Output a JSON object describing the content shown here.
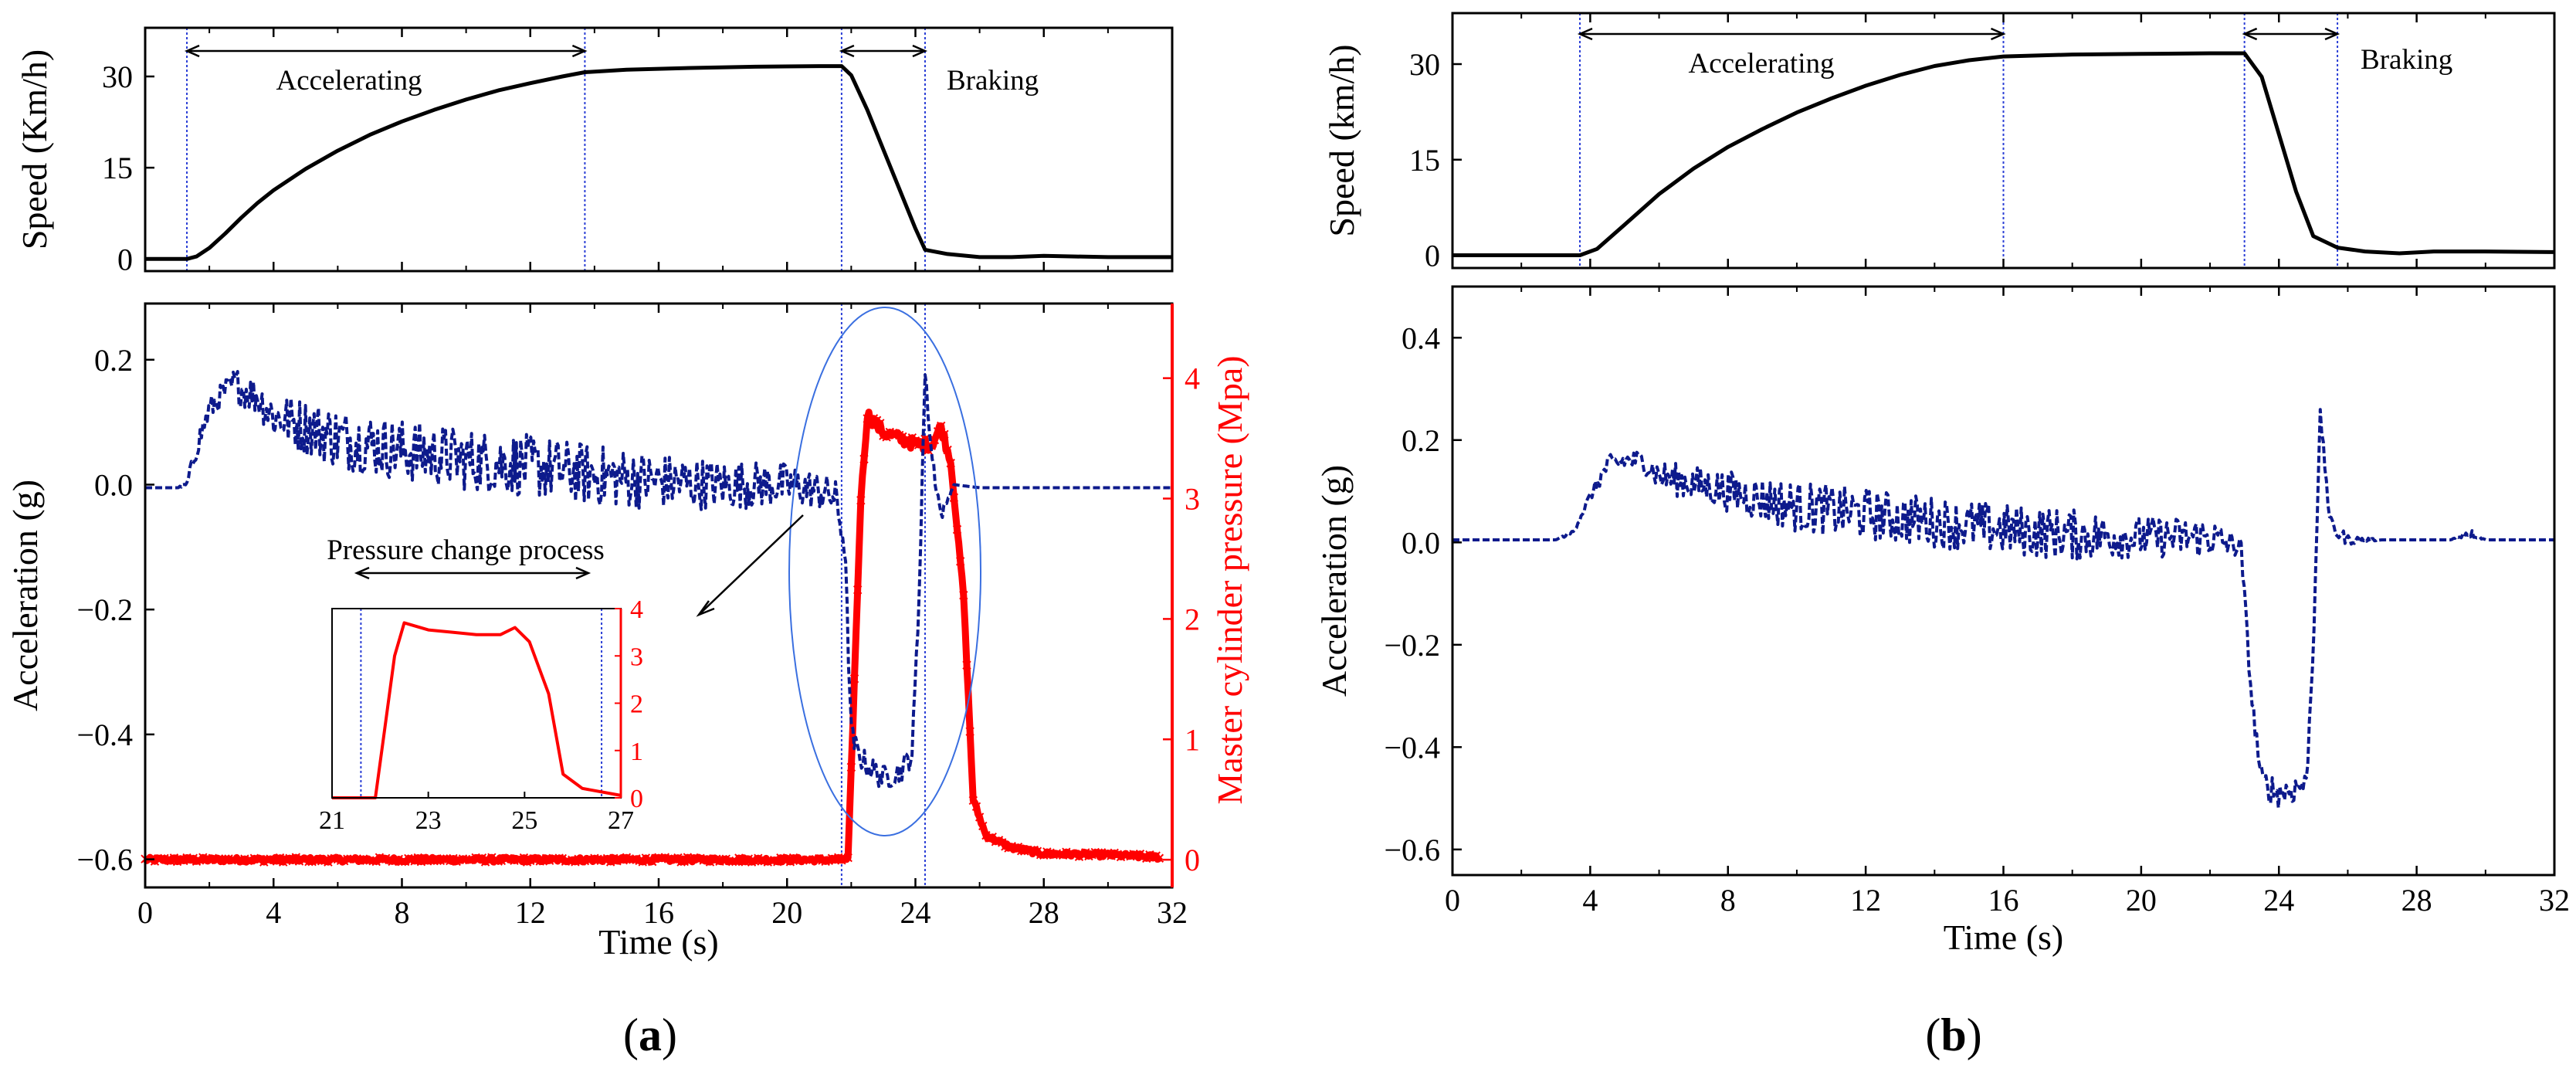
{
  "colors": {
    "speed": "#000000",
    "acceleration": "#0d1a8c",
    "pressure": "#ff0000",
    "marker_line": "#2b3fd6",
    "ellipse": "#3a6fe0",
    "frame": "#000000"
  },
  "panel_labels": {
    "a": "a",
    "b": "b"
  },
  "chart_data": [
    {
      "id": "a-speed",
      "type": "line",
      "title": "",
      "xlabel": "",
      "ylabel": "Speed (Km/h)",
      "xlim": [
        0,
        32
      ],
      "ylim": [
        -2,
        38
      ],
      "xticks": [
        0,
        4,
        8,
        12,
        16,
        20,
        24,
        28,
        32
      ],
      "xtick_labels_shown": false,
      "yticks": [
        0,
        15,
        30
      ],
      "ytick_labels": [
        "0",
        "15",
        "30"
      ],
      "series": [
        {
          "name": "Speed",
          "color": "#000000",
          "x": [
            0,
            1.3,
            1.6,
            2,
            2.5,
            3,
            3.5,
            4,
            5,
            6,
            7,
            8,
            9,
            10,
            11,
            12,
            13,
            13.7,
            15,
            17,
            19,
            21,
            21.7,
            22,
            22.5,
            23,
            23.5,
            24,
            24.3,
            25,
            26,
            27,
            28,
            29,
            30,
            32
          ],
          "y": [
            0,
            0,
            0.4,
            1.8,
            4.2,
            6.8,
            9.2,
            11.3,
            14.8,
            17.8,
            20.4,
            22.6,
            24.5,
            26.2,
            27.7,
            28.9,
            30,
            30.7,
            31.1,
            31.4,
            31.6,
            31.7,
            31.7,
            30.2,
            24.5,
            18,
            11.5,
            5,
            1.5,
            0.8,
            0.3,
            0.3,
            0.5,
            0.4,
            0.3,
            0.3
          ]
        }
      ],
      "annotations": [
        {
          "text": "Accelerating",
          "from": 1.3,
          "to": 13.7
        },
        {
          "text": "Braking",
          "from": 21.7,
          "to": 24.3
        }
      ],
      "markers": [
        1.3,
        13.7,
        21.7,
        24.3
      ]
    },
    {
      "id": "a-accel",
      "type": "line",
      "title": "",
      "xlabel": "Time (s)",
      "ylabel": "Acceleration (g)",
      "y2label": "Master cylinder pressure (Mpa)",
      "xlim": [
        0,
        32
      ],
      "ylim": [
        -0.645,
        0.29
      ],
      "y2lim": [
        -0.23,
        4.62
      ],
      "xticks": [
        0,
        4,
        8,
        12,
        16,
        20,
        24,
        28,
        32
      ],
      "xtick_labels": [
        "0",
        "4",
        "8",
        "12",
        "16",
        "20",
        "24",
        "28",
        "32"
      ],
      "yticks": [
        -0.6,
        -0.4,
        -0.2,
        0,
        0.2
      ],
      "ytick_labels": [
        "−0.6",
        "−0.4",
        "−0.2",
        "0.0",
        "0.2"
      ],
      "y2ticks": [
        0,
        1,
        2,
        3,
        4
      ],
      "y2tick_labels": [
        "0",
        "1",
        "2",
        "3",
        "4"
      ],
      "series": [
        {
          "name": "Acceleration",
          "axis": "left",
          "color": "#0d1a8c",
          "style": "dashed",
          "x": [
            0,
            1,
            1.3,
            1.6,
            2,
            2.5,
            2.8,
            3.5,
            4,
            6,
            8,
            10,
            12,
            14,
            16,
            18,
            20,
            21,
            21.5,
            21.8,
            22,
            22.2,
            22.5,
            23,
            23.5,
            23.9,
            24.1,
            24.3,
            24.5,
            24.8,
            25.2,
            26,
            28,
            30,
            32
          ],
          "y": [
            -0.005,
            -0.005,
            0.0,
            0.06,
            0.12,
            0.15,
            0.16,
            0.14,
            0.11,
            0.075,
            0.055,
            0.04,
            0.03,
            0.015,
            0.005,
            0.0,
            0.0,
            -0.01,
            -0.02,
            -0.1,
            -0.4,
            -0.43,
            -0.45,
            -0.47,
            -0.46,
            -0.43,
            -0.2,
            0.18,
            0.05,
            -0.05,
            0.0,
            -0.005,
            -0.005,
            -0.005,
            -0.005
          ],
          "noise_amplitude": [
            0,
            0,
            0.005,
            0.02,
            0.02,
            0.02,
            0.03,
            0.03,
            0.04,
            0.05,
            0.05,
            0.05,
            0.05,
            0.05,
            0.045,
            0.04,
            0.035,
            0.03,
            0.03,
            0.02,
            0.02,
            0.02,
            0.02,
            0.02,
            0.02,
            0.02,
            0.02,
            0.01,
            0.02,
            0.01,
            0,
            0,
            0,
            0,
            0
          ]
        },
        {
          "name": "Master cylinder pressure",
          "axis": "right",
          "color": "#ff0000",
          "style": "markers",
          "x": [
            0,
            21.5,
            21.9,
            22.1,
            22.3,
            22.5,
            23,
            23.5,
            24,
            24.5,
            24.8,
            25.1,
            25.5,
            25.8,
            26.2,
            27,
            28,
            30,
            31.7
          ],
          "y": [
            0,
            0,
            0,
            1.5,
            3,
            3.7,
            3.55,
            3.5,
            3.45,
            3.45,
            3.6,
            3.3,
            2.2,
            0.5,
            0.2,
            0.1,
            0.05,
            0.04,
            0.02
          ]
        }
      ],
      "annotations": [
        {
          "text": "Pressure change process"
        }
      ],
      "markers": [
        21.7,
        24.3
      ]
    },
    {
      "id": "a-inset",
      "type": "line",
      "title": "",
      "xlim": [
        21,
        27
      ],
      "ylim": [
        0,
        4
      ],
      "xticks": [
        21,
        23,
        25,
        27
      ],
      "xtick_labels": [
        "21",
        "23",
        "25",
        "27"
      ],
      "y2ticks": [
        0,
        1,
        2,
        3,
        4
      ],
      "y2tick_labels": [
        "0",
        "1",
        "2",
        "3",
        "4"
      ],
      "series": [
        {
          "name": "Master cylinder pressure",
          "color": "#ff0000",
          "x": [
            21,
            21.9,
            22.1,
            22.3,
            22.5,
            23,
            23.5,
            24,
            24.5,
            24.8,
            25.1,
            25.5,
            25.8,
            26.2,
            27
          ],
          "y": [
            0,
            0,
            1.5,
            3,
            3.7,
            3.55,
            3.5,
            3.45,
            3.45,
            3.6,
            3.3,
            2.2,
            0.5,
            0.2,
            0.05
          ]
        }
      ],
      "markers": [
        21.6,
        26.6
      ]
    },
    {
      "id": "b-speed",
      "type": "line",
      "title": "",
      "xlabel": "",
      "ylabel": "Speed (km/h)",
      "xlim": [
        0,
        32
      ],
      "ylim": [
        -2,
        38
      ],
      "xticks": [
        0,
        4,
        8,
        12,
        16,
        20,
        24,
        28,
        32
      ],
      "xtick_labels_shown": false,
      "yticks": [
        0,
        15,
        30
      ],
      "ytick_labels": [
        "0",
        "15",
        "30"
      ],
      "series": [
        {
          "name": "Speed",
          "color": "#000000",
          "x": [
            0,
            3.7,
            4.2,
            5,
            6,
            7,
            8,
            9,
            10,
            11,
            12,
            13,
            14,
            15,
            16,
            18,
            20,
            22,
            23,
            23.5,
            24,
            24.5,
            25,
            25.7,
            26.5,
            27.5,
            28.5,
            30,
            32
          ],
          "y": [
            0,
            0,
            1,
            4.8,
            9.6,
            13.6,
            17,
            19.8,
            22.4,
            24.6,
            26.6,
            28.3,
            29.7,
            30.6,
            31.2,
            31.5,
            31.6,
            31.7,
            31.7,
            28,
            19,
            10,
            3,
            1.2,
            0.6,
            0.3,
            0.6,
            0.6,
            0.5
          ]
        }
      ],
      "annotations": [
        {
          "text": "Accelerating",
          "from": 3.7,
          "to": 16
        },
        {
          "text": "Braking",
          "from": 23,
          "to": 25.7
        }
      ],
      "markers": [
        3.7,
        16,
        23,
        25.7
      ]
    },
    {
      "id": "b-accel",
      "type": "line",
      "title": "",
      "xlabel": "Time (s)",
      "ylabel": "Acceleration (g)",
      "xlim": [
        0,
        32
      ],
      "ylim": [
        -0.65,
        0.5
      ],
      "xticks": [
        0,
        4,
        8,
        12,
        16,
        20,
        24,
        28,
        32
      ],
      "xtick_labels": [
        "0",
        "4",
        "8",
        "12",
        "16",
        "20",
        "24",
        "28",
        "32"
      ],
      "yticks": [
        -0.6,
        -0.4,
        -0.2,
        0,
        0.2,
        0.4
      ],
      "ytick_labels": [
        "−0.6",
        "−0.4",
        "−0.2",
        "0.0",
        "0.2",
        "0.4"
      ],
      "series": [
        {
          "name": "Acceleration",
          "color": "#0d1a8c",
          "style": "dashed",
          "x": [
            0,
            3,
            3.5,
            4,
            4.5,
            5,
            5.5,
            6,
            8,
            10,
            12,
            14,
            16,
            18,
            20,
            22,
            22.9,
            23.2,
            23.5,
            24,
            24.5,
            24.8,
            25,
            25.2,
            25.5,
            26,
            27,
            28,
            29,
            29.5,
            30,
            32
          ],
          "y": [
            0.005,
            0.005,
            0.02,
            0.09,
            0.15,
            0.16,
            0.16,
            0.13,
            0.1,
            0.07,
            0.055,
            0.04,
            0.025,
            0.015,
            0.01,
            0.01,
            -0.01,
            -0.3,
            -0.47,
            -0.49,
            -0.48,
            -0.47,
            -0.2,
            0.25,
            0.03,
            0.005,
            0.005,
            0.005,
            0.005,
            0.02,
            0.005,
            0.005
          ],
          "noise_amplitude": [
            0,
            0,
            0.005,
            0.01,
            0.02,
            0.02,
            0.02,
            0.03,
            0.04,
            0.05,
            0.05,
            0.05,
            0.05,
            0.05,
            0.04,
            0.04,
            0.02,
            0.02,
            0.03,
            0.03,
            0.03,
            0.02,
            0.02,
            0.01,
            0.02,
            0.01,
            0,
            0,
            0,
            0.01,
            0,
            0
          ]
        }
      ]
    }
  ]
}
